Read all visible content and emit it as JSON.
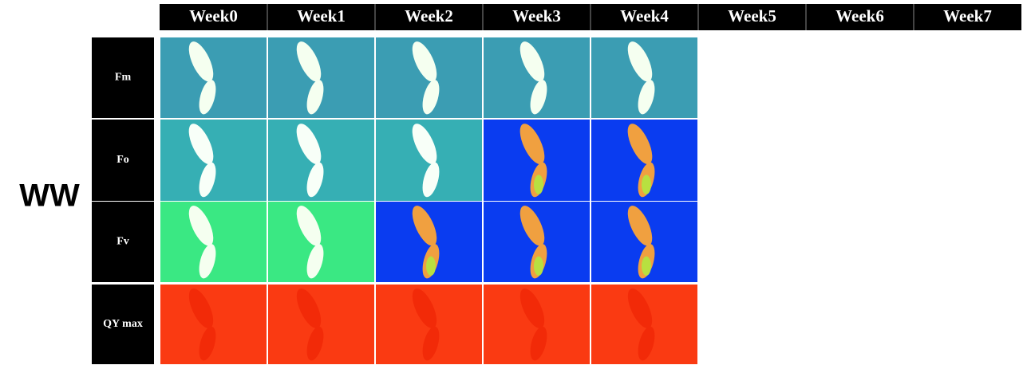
{
  "header": {
    "weeks": [
      "Week0",
      "Week1",
      "Week2",
      "Week3",
      "Week4",
      "Week5",
      "Week6",
      "Week7"
    ]
  },
  "group_label": "WW",
  "rows": [
    "Fm",
    "Fo",
    "Fv",
    "QY max"
  ]
}
